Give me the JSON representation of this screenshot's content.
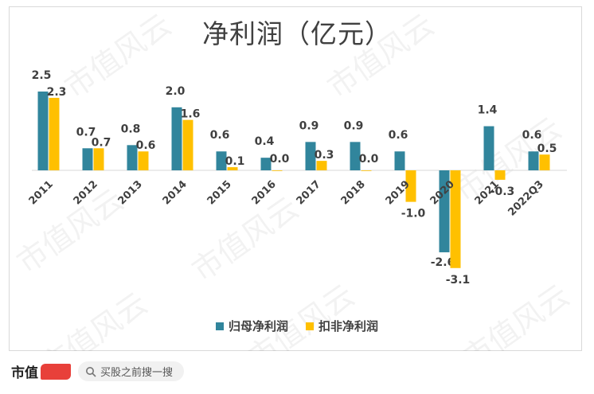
{
  "chart_data": {
    "type": "bar",
    "title": "净利润（亿元）",
    "categories": [
      "2011",
      "2012",
      "2013",
      "2014",
      "2015",
      "2016",
      "2017",
      "2018",
      "2019",
      "2020",
      "2021",
      "2022Q3"
    ],
    "series": [
      {
        "name": "归母净利润",
        "color": "#31859c",
        "values": [
          2.5,
          0.7,
          0.8,
          2.0,
          0.6,
          0.4,
          0.9,
          0.9,
          0.6,
          -2.6,
          1.4,
          0.6
        ]
      },
      {
        "name": "扣非净利润",
        "color": "#ffc000",
        "values": [
          2.3,
          0.7,
          0.6,
          1.6,
          0.1,
          0.0,
          0.3,
          0.0,
          -1.0,
          -3.1,
          -0.3,
          0.5
        ]
      }
    ],
    "ylim": [
      -3.1,
      2.5
    ],
    "xlabel": "",
    "ylabel": "",
    "legend": "bottom-center",
    "grid": false
  },
  "watermark": "市值风云",
  "footer": {
    "brand": "市值",
    "search_placeholder": "买股之前搜一搜"
  }
}
